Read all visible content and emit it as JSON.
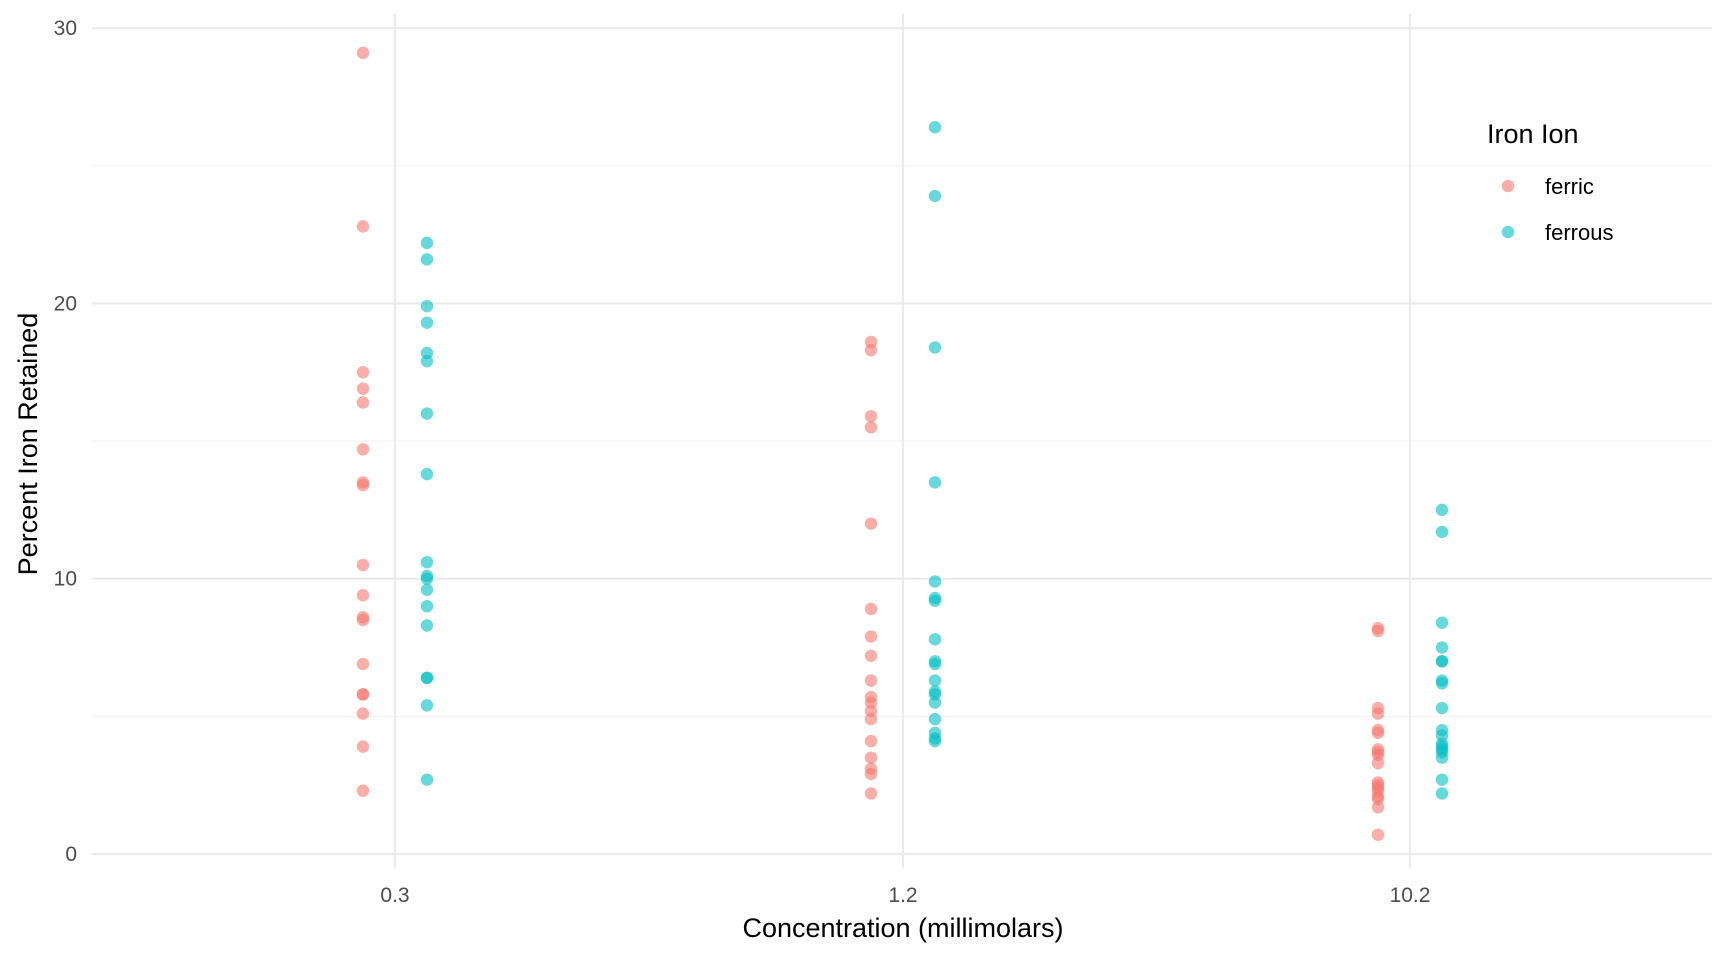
{
  "chart_data": {
    "type": "scatter",
    "title": "",
    "xlabel": "Concentration (millimolars)",
    "ylabel": "Percent Iron Retained",
    "categories": [
      "0.3",
      "1.2",
      "10.2"
    ],
    "ylim": [
      -0.6,
      30.5
    ],
    "y_ticks": [
      0,
      10,
      20,
      30
    ],
    "grid": true,
    "legend": {
      "title": "Iron Ion",
      "position": "right-top",
      "entries": [
        "ferric",
        "ferrous"
      ]
    },
    "series": [
      {
        "name": "ferric",
        "color": "#F8766D",
        "points": [
          {
            "category": "0.3",
            "values": [
              29.1,
              22.8,
              17.5,
              16.9,
              16.4,
              14.7,
              13.5,
              13.4,
              10.5,
              9.4,
              8.6,
              8.5,
              6.9,
              5.8,
              5.8,
              5.1,
              3.9,
              2.3
            ]
          },
          {
            "category": "1.2",
            "values": [
              18.6,
              18.3,
              15.9,
              15.5,
              12.0,
              8.9,
              7.9,
              7.2,
              6.3,
              5.7,
              5.5,
              5.2,
              4.9,
              4.1,
              3.5,
              3.1,
              2.9,
              2.2
            ]
          },
          {
            "category": "10.2",
            "values": [
              8.2,
              8.1,
              5.3,
              5.1,
              4.5,
              4.4,
              3.8,
              3.7,
              3.6,
              3.3,
              2.6,
              2.5,
              2.4,
              2.3,
              2.1,
              2.0,
              1.7,
              0.7
            ]
          }
        ]
      },
      {
        "name": "ferrous",
        "color": "#00BFC4",
        "points": [
          {
            "category": "0.3",
            "values": [
              22.2,
              21.6,
              19.9,
              19.3,
              18.2,
              17.9,
              16.0,
              13.8,
              10.6,
              10.1,
              10.0,
              9.6,
              9.0,
              8.3,
              6.4,
              6.4,
              5.4,
              2.7
            ]
          },
          {
            "category": "1.2",
            "values": [
              26.4,
              23.9,
              18.4,
              13.5,
              9.9,
              9.3,
              9.2,
              7.8,
              7.0,
              6.9,
              6.3,
              5.9,
              5.8,
              5.5,
              4.9,
              4.4,
              4.2,
              4.1
            ]
          },
          {
            "category": "10.2",
            "values": [
              12.5,
              11.7,
              8.4,
              7.5,
              7.0,
              7.0,
              6.3,
              6.2,
              5.3,
              4.5,
              4.3,
              4.0,
              3.8,
              3.7,
              3.5,
              2.7,
              2.2,
              3.9
            ]
          }
        ]
      }
    ]
  }
}
